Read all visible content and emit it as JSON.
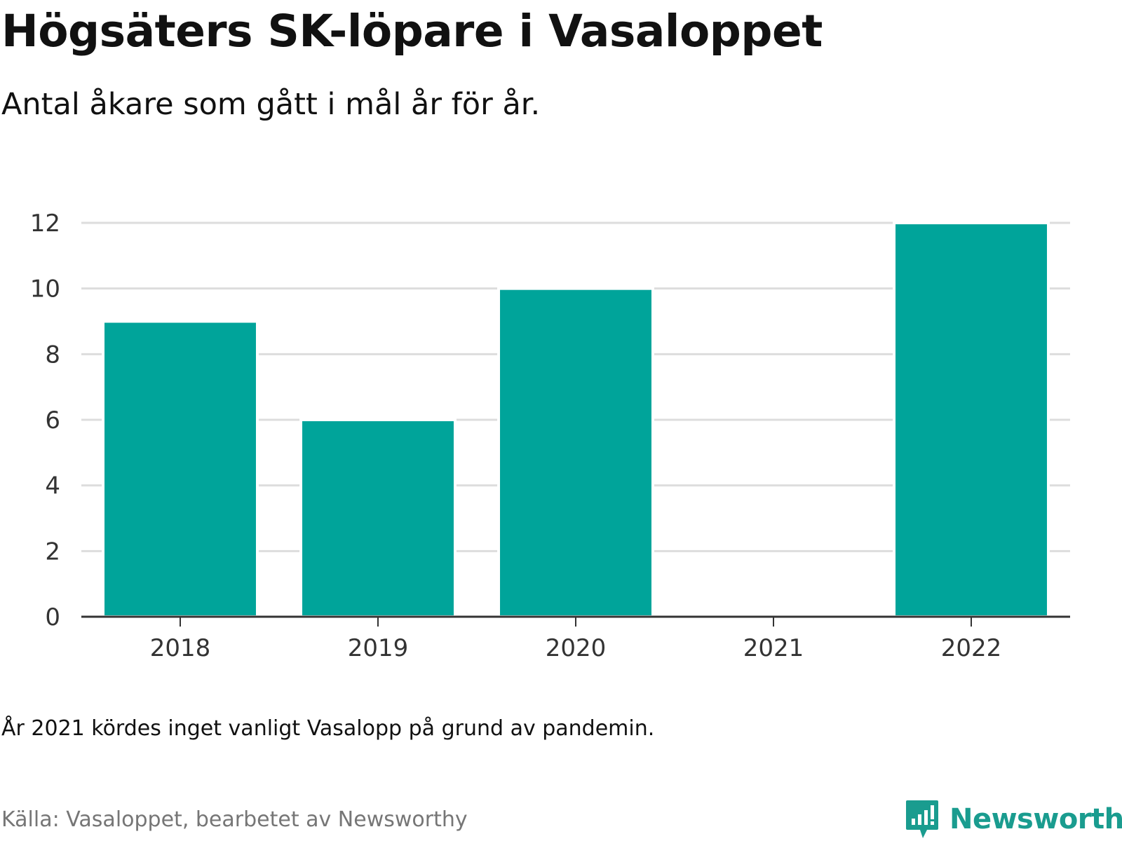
{
  "header": {
    "title": "Högsäters SK-löpare i Vasaloppet",
    "subtitle": "Antal åkare som gått i mål år för år."
  },
  "footer": {
    "note": "År 2021 kördes inget vanligt Vasalopp på grund av pandemin.",
    "source": "Källa: Vasaloppet, bearbetet av Newsworthy",
    "brand": "Newsworthy",
    "brand_icon": "newsworthy-logo-icon"
  },
  "colors": {
    "bar": "#00a49a",
    "brand": "#1a9c8f",
    "grid": "#dddddd",
    "axis": "#333333"
  },
  "chart_data": {
    "type": "bar",
    "title": "Högsäters SK-löpare i Vasaloppet",
    "subtitle": "Antal åkare som gått i mål år för år.",
    "categories": [
      "2018",
      "2019",
      "2020",
      "2021",
      "2022"
    ],
    "values": [
      9,
      6,
      10,
      0,
      12
    ],
    "xlabel": "",
    "ylabel": "",
    "ylim": [
      0,
      12
    ],
    "yticks": [
      0,
      2,
      4,
      6,
      8,
      10,
      12
    ],
    "grid": true,
    "legend": "none"
  }
}
